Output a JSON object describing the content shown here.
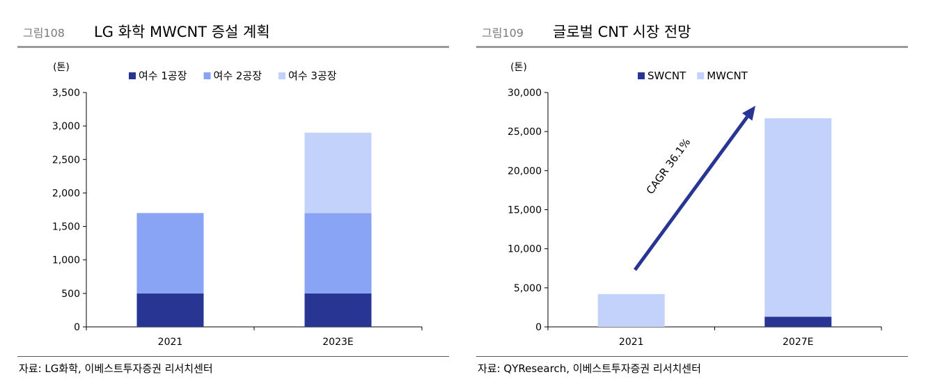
{
  "panels": [
    {
      "fig_num": "그림108",
      "title": "LG 화학 MWCNT 증설 계획",
      "source": "자료: LG화학, 이베스트투자증권 리서치센터"
    },
    {
      "fig_num": "그림109",
      "title": "글로벌 CNT 시장 전망",
      "source": "자료: QYResearch, 이베스트투자증권 리서치센터"
    }
  ],
  "chart_data": [
    {
      "type": "bar",
      "stacked": true,
      "unit_label": "(톤)",
      "categories": [
        "2021",
        "2023E"
      ],
      "series": [
        {
          "name": "여수 1공장",
          "values": [
            500,
            500
          ],
          "color": "#283593"
        },
        {
          "name": "여수 2공장",
          "values": [
            1200,
            1200
          ],
          "color": "#8aa4f5"
        },
        {
          "name": "여수 3공장",
          "values": [
            0,
            1200
          ],
          "color": "#c3d2fa"
        }
      ],
      "ylim": [
        0,
        3500
      ],
      "yticks": [
        "0",
        "500",
        "1,000",
        "1,500",
        "2,000",
        "2,500",
        "3,000",
        "3,500"
      ],
      "legend": "top"
    },
    {
      "type": "bar",
      "stacked": true,
      "unit_label": "(톤)",
      "categories": [
        "2021",
        "2027E"
      ],
      "series": [
        {
          "name": "SWCNT",
          "values": [
            0,
            1300
          ],
          "color": "#283593"
        },
        {
          "name": "MWCNT",
          "values": [
            4200,
            25400
          ],
          "color": "#c3d2fa"
        }
      ],
      "ylim": [
        0,
        30000
      ],
      "yticks": [
        "0",
        "5,000",
        "10,000",
        "15,000",
        "20,000",
        "25,000",
        "30,000"
      ],
      "annotation": "CAGR 36.1%",
      "arrow_color": "#283593",
      "legend": "top"
    }
  ]
}
